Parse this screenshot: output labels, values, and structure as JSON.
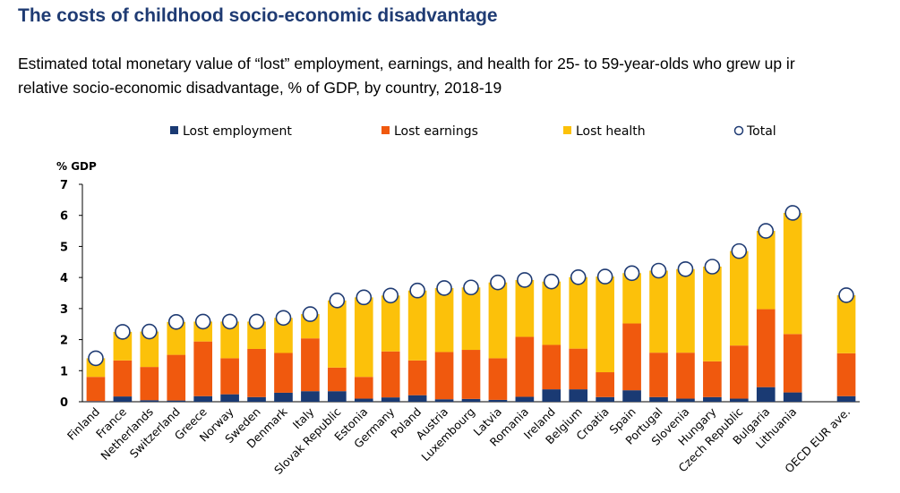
{
  "title": "The costs of childhood socio-economic disadvantage",
  "subtitle_line1": "Estimated total monetary value of “lost” employment, earnings, and health for 25- to 59-year-olds who grew up ir",
  "subtitle_line2": "relative socio-economic disadvantage, % of GDP, by country, 2018-19",
  "colors": {
    "employment": "#1a3a73",
    "earnings": "#f0590e",
    "health": "#fcc10a",
    "total_stroke": "#1f3b73",
    "axis": "#000000"
  },
  "chart_data": {
    "type": "bar",
    "stacked": true,
    "title": "The costs of childhood socio-economic disadvantage",
    "ylabel": "% GDP",
    "xlabel": "",
    "ylim": [
      0,
      7
    ],
    "yticks": [
      0,
      1,
      2,
      3,
      4,
      5,
      6,
      7
    ],
    "legend": {
      "placement": "top",
      "entries": [
        "Lost employment",
        "Lost earnings",
        "Lost health",
        "Total"
      ]
    },
    "categories": [
      "Finland",
      "France",
      "Netherlands",
      "Switzerland",
      "Greece",
      "Norway",
      "Sweden",
      "Denmark",
      "Italy",
      "Slovak Republic",
      "Estonia",
      "Germany",
      "Poland",
      "Austria",
      "Luxembourg",
      "Latvia",
      "Romania",
      "Ireland",
      "Belgium",
      "Croatia",
      "Spain",
      "Portugal",
      "Slovenia",
      "Hungary",
      "Czech Republic",
      "Bulgaria",
      "Lithuania",
      "OECD EUR ave."
    ],
    "gap_before": "OECD EUR ave.",
    "series": [
      {
        "name": "Lost employment",
        "values": [
          0.02,
          0.17,
          0.05,
          0.04,
          0.18,
          0.24,
          0.15,
          0.29,
          0.34,
          0.34,
          0.1,
          0.14,
          0.21,
          0.08,
          0.09,
          0.06,
          0.16,
          0.4,
          0.4,
          0.15,
          0.37,
          0.15,
          0.1,
          0.15,
          0.1,
          0.47,
          0.3,
          0.18
        ]
      },
      {
        "name": "Lost earnings",
        "values": [
          0.78,
          1.16,
          1.07,
          1.47,
          1.76,
          1.16,
          1.55,
          1.28,
          1.7,
          0.76,
          0.7,
          1.48,
          1.12,
          1.52,
          1.58,
          1.34,
          1.93,
          1.43,
          1.31,
          0.8,
          2.15,
          1.43,
          1.48,
          1.15,
          1.71,
          2.51,
          1.88,
          1.38
        ]
      },
      {
        "name": "Lost health",
        "values": [
          0.6,
          0.92,
          1.14,
          1.06,
          0.64,
          1.18,
          0.88,
          1.13,
          0.78,
          2.16,
          2.56,
          1.8,
          2.25,
          2.06,
          2.01,
          2.44,
          1.83,
          2.04,
          2.3,
          3.08,
          1.62,
          2.64,
          2.69,
          3.05,
          3.04,
          2.52,
          3.9,
          1.87
        ]
      },
      {
        "name": "Total",
        "values": [
          1.4,
          2.25,
          2.26,
          2.57,
          2.58,
          2.58,
          2.58,
          2.7,
          2.82,
          3.26,
          3.36,
          3.42,
          3.58,
          3.66,
          3.68,
          3.84,
          3.92,
          3.87,
          4.01,
          4.03,
          4.14,
          4.22,
          4.27,
          4.35,
          4.85,
          5.5,
          6.08,
          3.43
        ]
      }
    ]
  }
}
